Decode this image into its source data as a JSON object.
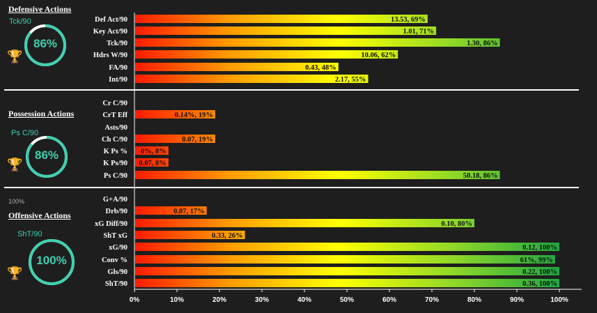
{
  "sections": [
    {
      "title": "Defensive Actions",
      "metric": "Tck/90",
      "ring_value": "86%",
      "ring_fraction": 0.86
    },
    {
      "title": "Possession Actions",
      "metric": "Ps C/90",
      "ring_value": "86%",
      "ring_fraction": 0.86
    },
    {
      "title": "Offensive Actions",
      "metric": "ShT/90",
      "ring_value": "100%",
      "ring_fraction": 1.0
    }
  ],
  "note_text": "100%",
  "colors": {
    "background": "#1e1e1e",
    "accent": "#3fd0b0",
    "bar_start": "#ff1a00",
    "bar_mid": "#ffff00",
    "bar_end": "#1fa640",
    "trophy": "#e6b422"
  },
  "icons": {
    "trophy": "trophy-icon"
  },
  "chart_data": {
    "type": "bar",
    "orientation": "horizontal",
    "xlim": [
      0,
      100
    ],
    "x_ticks": [
      "0%",
      "10%",
      "20%",
      "30%",
      "40%",
      "50%",
      "60%",
      "70%",
      "80%",
      "90%",
      "100%"
    ],
    "categories": [
      "Def Act/90",
      "Key Act/90",
      "Tck/90",
      "Hdrs W/90",
      "FA/90",
      "Int/90",
      "Cr C/90",
      "CrT Eff",
      "Asts/90",
      "Ch C/90",
      "K Ps %",
      "K Ps/90",
      "Ps C/90",
      "G+A/90",
      "Drb/90",
      "xG Diff/90",
      "ShT xG",
      "xG/90",
      "Conv %",
      "Gls/90",
      "ShT/90"
    ],
    "values": [
      69,
      71,
      86,
      62,
      48,
      55,
      0,
      19,
      0,
      19,
      8,
      8,
      86,
      0,
      17,
      80,
      26,
      100,
      99,
      100,
      100
    ],
    "labels": [
      "13.53, 69%",
      "1.01, 71%",
      "1.30, 86%",
      "10.06, 62%",
      "0.43, 48%",
      "2.17, 55%",
      "",
      "0.14%, 19%",
      "",
      "0.07, 19%",
      "0%, 8%",
      "0.07, 8%",
      "50.18, 86%",
      "",
      "0.07, 17%",
      "0.10, 80%",
      "0.33, 26%",
      "0.12, 100%",
      "61%, 99%",
      "0.22, 100%",
      "0.36, 100%"
    ],
    "groups": [
      "Defensive Actions",
      "Defensive Actions",
      "Defensive Actions",
      "Defensive Actions",
      "Defensive Actions",
      "Defensive Actions",
      "Possession Actions",
      "Possession Actions",
      "Possession Actions",
      "Possession Actions",
      "Possession Actions",
      "Possession Actions",
      "Possession Actions",
      "Offensive Actions",
      "Offensive Actions",
      "Offensive Actions",
      "Offensive Actions",
      "Offensive Actions",
      "Offensive Actions",
      "Offensive Actions",
      "Offensive Actions"
    ]
  }
}
